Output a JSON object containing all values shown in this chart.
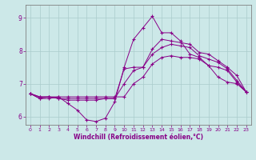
{
  "xlabel": "Windchill (Refroidissement éolien,°C)",
  "bg_color": "#cce8e8",
  "line_color": "#880088",
  "grid_color": "#aacccc",
  "xlim": [
    -0.5,
    23.5
  ],
  "ylim": [
    5.75,
    9.4
  ],
  "yticks": [
    6,
    7,
    8,
    9
  ],
  "xticks": [
    0,
    1,
    2,
    3,
    4,
    5,
    6,
    7,
    8,
    9,
    10,
    11,
    12,
    13,
    14,
    15,
    16,
    17,
    18,
    19,
    20,
    21,
    22,
    23
  ],
  "series": [
    [
      6.7,
      6.55,
      6.55,
      6.6,
      6.4,
      6.2,
      5.9,
      5.85,
      5.95,
      6.45,
      7.5,
      8.35,
      8.7,
      9.05,
      8.55,
      8.55,
      8.3,
      7.9,
      7.8,
      7.55,
      7.2,
      7.05,
      7.0,
      6.75
    ],
    [
      6.7,
      6.55,
      6.6,
      6.55,
      6.5,
      6.5,
      6.5,
      6.5,
      6.55,
      6.55,
      7.45,
      7.5,
      7.5,
      8.05,
      8.35,
      8.3,
      8.25,
      8.2,
      7.95,
      7.9,
      7.7,
      7.5,
      7.25,
      6.75
    ],
    [
      6.7,
      6.6,
      6.6,
      6.55,
      6.55,
      6.55,
      6.55,
      6.55,
      6.55,
      6.55,
      7.0,
      7.4,
      7.5,
      7.9,
      8.1,
      8.2,
      8.15,
      8.1,
      7.85,
      7.75,
      7.65,
      7.45,
      7.1,
      6.75
    ],
    [
      6.7,
      6.6,
      6.6,
      6.6,
      6.6,
      6.6,
      6.6,
      6.6,
      6.6,
      6.6,
      6.6,
      7.0,
      7.2,
      7.6,
      7.8,
      7.85,
      7.8,
      7.8,
      7.75,
      7.55,
      7.5,
      7.4,
      7.05,
      6.75
    ]
  ]
}
